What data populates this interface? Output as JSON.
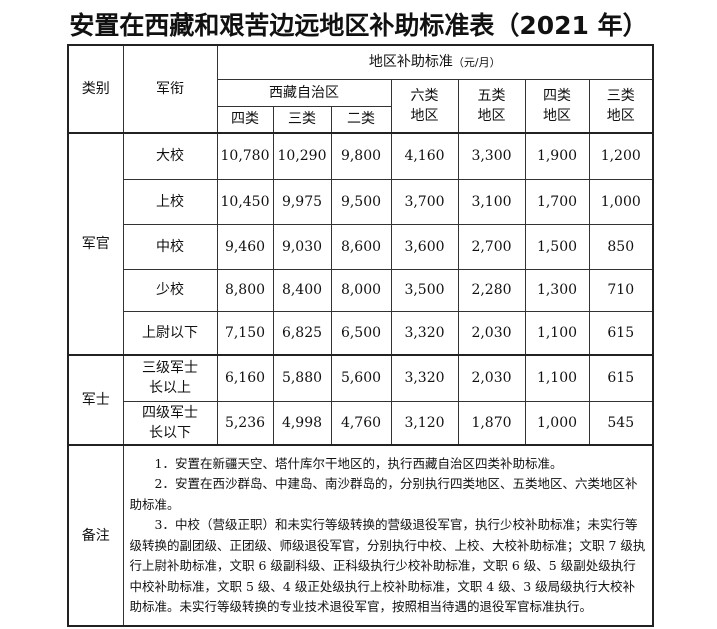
{
  "title": "安置在西藏和艰苦边远地区补助标准表（2021 年）",
  "header": {
    "category": "类别",
    "rank": "军衔",
    "standard": "地区补助标准",
    "unit": "（元/月）",
    "tibet": "西藏自治区",
    "tibet_sub": [
      "四类",
      "三类",
      "二类"
    ],
    "regions": [
      "六类\n地区",
      "五类\n地区",
      "四类\n地区",
      "三类\n地区"
    ]
  },
  "groups": [
    {
      "category": "军官",
      "rows": [
        {
          "rank": "大校",
          "values": [
            "10,780",
            "10,290",
            "9,800",
            "4,160",
            "3,300",
            "1,900",
            "1,200"
          ]
        },
        {
          "rank": "上校",
          "values": [
            "10,450",
            "9,975",
            "9,500",
            "3,700",
            "3,100",
            "1,700",
            "1,000"
          ]
        },
        {
          "rank": "中校",
          "values": [
            "9,460",
            "9,030",
            "8,600",
            "3,600",
            "2,700",
            "1,500",
            "850"
          ]
        },
        {
          "rank": "少校",
          "values": [
            "8,800",
            "8,400",
            "8,000",
            "3,500",
            "2,280",
            "1,300",
            "710"
          ]
        },
        {
          "rank": "上尉以下",
          "values": [
            "7,150",
            "6,825",
            "6,500",
            "3,320",
            "2,030",
            "1,100",
            "615"
          ]
        }
      ]
    },
    {
      "category": "军士",
      "rows": [
        {
          "rank": "三级军士长以上",
          "values": [
            "6,160",
            "5,880",
            "5,600",
            "3,320",
            "2,030",
            "1,100",
            "615"
          ]
        },
        {
          "rank": "四级军士长以下",
          "values": [
            "5,236",
            "4,998",
            "4,760",
            "3,120",
            "1,870",
            "1,000",
            "545"
          ]
        }
      ]
    }
  ],
  "notes": {
    "label": "备注",
    "items": [
      "1．安置在新疆天空、塔什库尔干地区的，执行西藏自治区四类补助标准。",
      "2．安置在西沙群岛、中建岛、南沙群岛的，分别执行四类地区、五类地区、六类地区补助标准。",
      "3．中校（营级正职）和未实行等级转换的营级退役军官，执行少校补助标准；未实行等级转换的副团级、正团级、师级退役军官，分别执行中校、上校、大校补助标准；文职 7 级执行上尉补助标准，文职 6 级副科级、正科级执行少校补助标准，文职 6 级、5 级副处级执行中校补助标准，文职 5 级、4 级正处级执行上校补助标准，文职 4 级、3 级局级执行大校补助标准。未实行等级转换的专业技术退役军官，按照相当待遇的退役军官标准执行。"
    ]
  }
}
